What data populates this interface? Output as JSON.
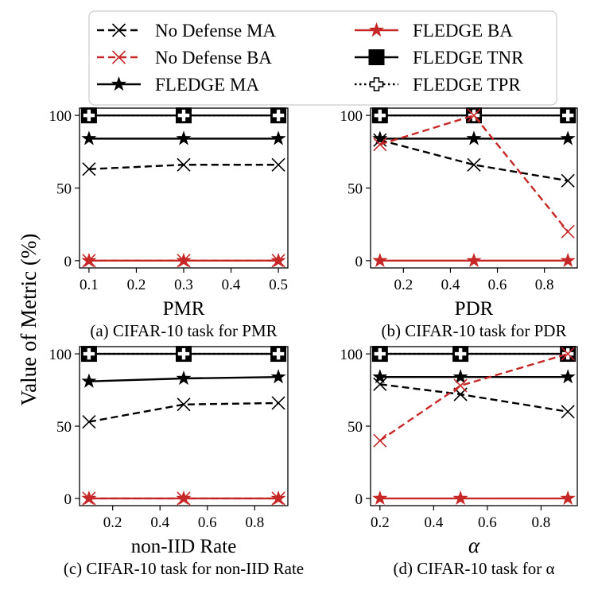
{
  "figure": {
    "ylabel": "Value of Metric (%)"
  },
  "legend": [
    {
      "label": "No Defense MA",
      "color": "#000000",
      "dash": "dashed",
      "marker": "x"
    },
    {
      "label": "No Defense BA",
      "color": "#c62828",
      "dash": "dashed",
      "marker": "x"
    },
    {
      "label": "FLEDGE MA",
      "color": "#000000",
      "dash": "solid",
      "marker": "star"
    },
    {
      "label": "FLEDGE BA",
      "color": "#c62828",
      "dash": "solid",
      "marker": "star"
    },
    {
      "label": "FLEDGE TNR",
      "color": "#000000",
      "dash": "solid",
      "marker": "square"
    },
    {
      "label": "FLEDGE TPR",
      "color": "#000000",
      "dash": "dotted",
      "marker": "plus"
    }
  ],
  "chart_data": [
    {
      "type": "line",
      "caption": "(a) CIFAR-10 task for PMR",
      "xlabel": "PMR",
      "xlabel_italic": false,
      "x": [
        0.1,
        0.3,
        0.5
      ],
      "xlim": [
        0.08,
        0.52
      ],
      "xticks": [
        0.1,
        0.2,
        0.3,
        0.4,
        0.5
      ],
      "xtick_labels": [
        "0.1",
        "0.2",
        "0.3",
        "0.4",
        "0.5"
      ],
      "ylim": [
        -5,
        105
      ],
      "yticks": [
        0,
        50,
        100
      ],
      "ytick_labels": [
        "0",
        "50",
        "100"
      ],
      "series": [
        {
          "name": "No Defense MA",
          "values": [
            63,
            66,
            66
          ]
        },
        {
          "name": "No Defense BA",
          "values": [
            0,
            0,
            0
          ]
        },
        {
          "name": "FLEDGE MA",
          "values": [
            84,
            84,
            84
          ]
        },
        {
          "name": "FLEDGE BA",
          "values": [
            0,
            0,
            0
          ]
        },
        {
          "name": "FLEDGE TNR",
          "values": [
            100,
            100,
            100
          ]
        },
        {
          "name": "FLEDGE TPR",
          "values": [
            100,
            100,
            100
          ]
        }
      ]
    },
    {
      "type": "line",
      "caption": "(b) CIFAR-10 task for PDR",
      "xlabel": "PDR",
      "xlabel_italic": false,
      "x": [
        0.1,
        0.5,
        0.9
      ],
      "xlim": [
        0.06,
        0.94
      ],
      "xticks": [
        0.2,
        0.4,
        0.6,
        0.8
      ],
      "xtick_labels": [
        "0.2",
        "0.4",
        "0.6",
        "0.8"
      ],
      "ylim": [
        -5,
        105
      ],
      "yticks": [
        0,
        50,
        100
      ],
      "ytick_labels": [
        "0",
        "50",
        "100"
      ],
      "series": [
        {
          "name": "No Defense MA",
          "values": [
            83,
            66,
            55
          ]
        },
        {
          "name": "No Defense BA",
          "values": [
            80,
            100,
            20
          ]
        },
        {
          "name": "FLEDGE MA",
          "values": [
            84,
            84,
            84
          ]
        },
        {
          "name": "FLEDGE BA",
          "values": [
            0,
            0,
            0
          ]
        },
        {
          "name": "FLEDGE TNR",
          "values": [
            100,
            100,
            100
          ]
        },
        {
          "name": "FLEDGE TPR",
          "values": [
            100,
            100,
            100
          ]
        }
      ]
    },
    {
      "type": "line",
      "caption": "(c) CIFAR-10 task for non-IID Rate",
      "xlabel": "non-IID Rate",
      "xlabel_italic": false,
      "x": [
        0.1,
        0.5,
        0.9
      ],
      "xlim": [
        0.06,
        0.94
      ],
      "xticks": [
        0.2,
        0.4,
        0.6,
        0.8
      ],
      "xtick_labels": [
        "0.2",
        "0.4",
        "0.6",
        "0.8"
      ],
      "ylim": [
        -5,
        105
      ],
      "yticks": [
        0,
        50,
        100
      ],
      "ytick_labels": [
        "0",
        "50",
        "100"
      ],
      "series": [
        {
          "name": "No Defense MA",
          "values": [
            53,
            65,
            66
          ]
        },
        {
          "name": "No Defense BA",
          "values": [
            0,
            0,
            0
          ]
        },
        {
          "name": "FLEDGE MA",
          "values": [
            81,
            83,
            84
          ]
        },
        {
          "name": "FLEDGE BA",
          "values": [
            0,
            0,
            0
          ]
        },
        {
          "name": "FLEDGE TNR",
          "values": [
            100,
            100,
            100
          ]
        },
        {
          "name": "FLEDGE TPR",
          "values": [
            100,
            100,
            100
          ]
        }
      ]
    },
    {
      "type": "line",
      "caption": "(d) CIFAR-10 task for α",
      "xlabel": "α",
      "xlabel_italic": true,
      "x": [
        0.2,
        0.5,
        0.9
      ],
      "xlim": [
        0.165,
        0.935
      ],
      "xticks": [
        0.2,
        0.4,
        0.6,
        0.8
      ],
      "xtick_labels": [
        "0.2",
        "0.4",
        "0.6",
        "0.8"
      ],
      "ylim": [
        -5,
        105
      ],
      "yticks": [
        0,
        50,
        100
      ],
      "ytick_labels": [
        "0",
        "50",
        "100"
      ],
      "series": [
        {
          "name": "No Defense MA",
          "values": [
            79,
            72,
            60
          ]
        },
        {
          "name": "No Defense BA",
          "values": [
            40,
            78,
            100
          ]
        },
        {
          "name": "FLEDGE MA",
          "values": [
            84,
            84,
            84
          ]
        },
        {
          "name": "FLEDGE BA",
          "values": [
            0,
            0,
            0
          ]
        },
        {
          "name": "FLEDGE TNR",
          "values": [
            100,
            100,
            100
          ]
        },
        {
          "name": "FLEDGE TPR",
          "values": [
            100,
            100,
            100
          ]
        }
      ]
    }
  ]
}
